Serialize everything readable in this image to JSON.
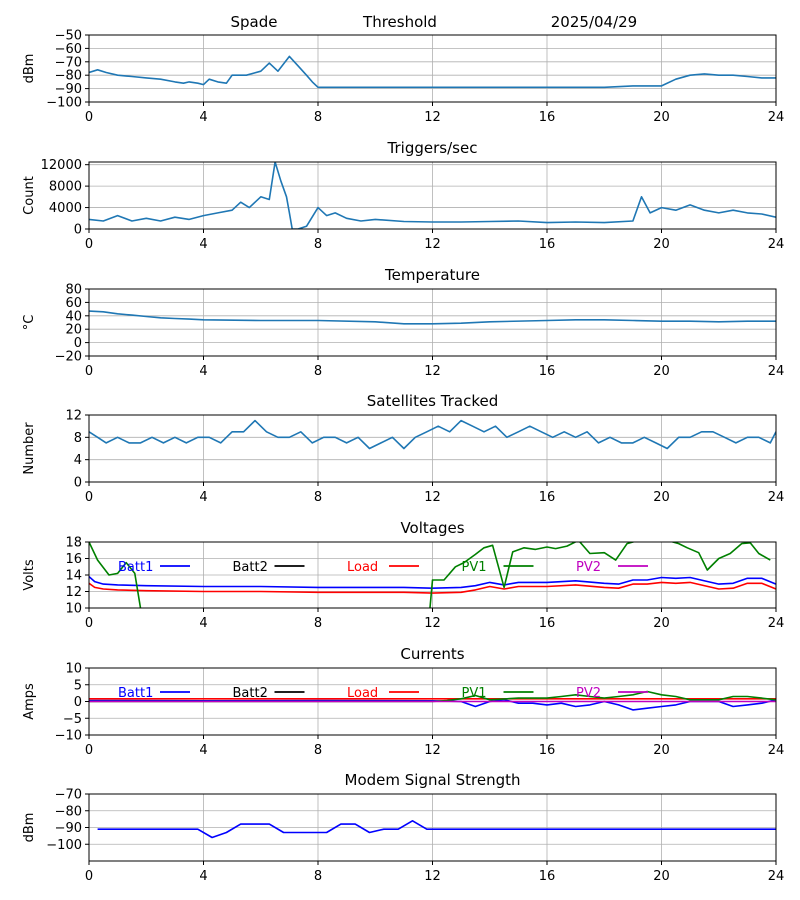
{
  "header": {
    "station": "Spade",
    "mode": "Threshold",
    "date": "2025/04/29"
  },
  "chart_data": [
    {
      "id": "signal",
      "type": "line",
      "title": "",
      "xlabel": "",
      "ylabel": "dBm",
      "xlim": [
        0,
        24
      ],
      "ylim": [
        -100,
        -50
      ],
      "xticks": [
        0,
        4,
        8,
        12,
        16,
        20,
        24
      ],
      "yticks": [
        -100,
        -90,
        -80,
        -70,
        -60,
        -50
      ],
      "yticklabels": [
        "−100",
        "−90",
        "−80",
        "−70",
        "−60",
        "−50"
      ],
      "grid": true,
      "series": [
        {
          "color": "#1f77b4",
          "x": [
            0,
            0.3,
            0.6,
            1,
            1.5,
            2,
            2.5,
            3,
            3.3,
            3.5,
            3.8,
            4,
            4.2,
            4.5,
            4.8,
            5,
            5.5,
            6,
            6.3,
            6.6,
            7,
            7.3,
            7.6,
            7.8,
            8,
            10,
            12,
            14,
            16,
            17,
            18,
            19,
            20,
            20.5,
            21,
            21.5,
            22,
            22.5,
            23,
            23.5,
            24
          ],
          "y": [
            -78,
            -76,
            -78,
            -80,
            -81,
            -82,
            -83,
            -85,
            -86,
            -85,
            -86,
            -87,
            -83,
            -85,
            -86,
            -80,
            -80,
            -77,
            -71,
            -77,
            -66,
            -73,
            -80,
            -85,
            -89,
            -89,
            -89,
            -89,
            -89,
            -89,
            -89,
            -88,
            -88,
            -83,
            -80,
            -79,
            -80,
            -80,
            -81,
            -82,
            -82
          ]
        }
      ]
    },
    {
      "id": "triggers",
      "type": "line",
      "title": "Triggers/sec",
      "xlabel": "",
      "ylabel": "Count",
      "xlim": [
        0,
        24
      ],
      "ylim": [
        0,
        12500
      ],
      "xticks": [
        0,
        4,
        8,
        12,
        16,
        20,
        24
      ],
      "yticks": [
        0,
        4000,
        8000,
        12000
      ],
      "yticklabels": [
        "0",
        "4000",
        "8000",
        "12000"
      ],
      "grid": true,
      "series": [
        {
          "color": "#1f77b4",
          "x": [
            0,
            0.5,
            1,
            1.5,
            2,
            2.5,
            3,
            3.5,
            4,
            4.5,
            5,
            5.3,
            5.6,
            6,
            6.3,
            6.5,
            6.7,
            6.9,
            7,
            7.1,
            7.3,
            7.6,
            8,
            8.3,
            8.6,
            9,
            9.5,
            10,
            11,
            12,
            13,
            14,
            15,
            16,
            17,
            18,
            19,
            19.3,
            19.6,
            20,
            20.5,
            21,
            21.5,
            22,
            22.5,
            23,
            23.5,
            24
          ],
          "y": [
            1800,
            1500,
            2500,
            1500,
            2000,
            1500,
            2200,
            1800,
            2500,
            3000,
            3500,
            5000,
            4000,
            6000,
            5500,
            12500,
            9000,
            6000,
            3000,
            0,
            0,
            500,
            4000,
            2500,
            3000,
            2000,
            1500,
            1800,
            1400,
            1300,
            1300,
            1400,
            1500,
            1200,
            1300,
            1200,
            1500,
            6000,
            3000,
            4000,
            3500,
            4500,
            3500,
            3000,
            3500,
            3000,
            2800,
            2200
          ]
        }
      ]
    },
    {
      "id": "temperature",
      "type": "line",
      "title": "Temperature",
      "xlabel": "",
      "ylabel": "°C",
      "xlim": [
        0,
        24
      ],
      "ylim": [
        -20,
        80
      ],
      "xticks": [
        0,
        4,
        8,
        12,
        16,
        20,
        24
      ],
      "yticks": [
        -20,
        0,
        20,
        40,
        60,
        80
      ],
      "yticklabels": [
        "−20",
        "0",
        "20",
        "40",
        "60",
        "80"
      ],
      "grid": true,
      "series": [
        {
          "color": "#1f77b4",
          "x": [
            0,
            0.5,
            1,
            1.5,
            2,
            2.5,
            3,
            3.5,
            4,
            6,
            8,
            10,
            11,
            12,
            13,
            14,
            16,
            17,
            18,
            19,
            20,
            21,
            22,
            23,
            24
          ],
          "y": [
            47,
            46,
            43,
            41,
            39,
            37,
            36,
            35,
            34,
            33,
            33,
            31,
            28,
            28,
            29,
            31,
            33,
            34,
            34,
            33,
            32,
            32,
            31,
            32,
            32
          ]
        }
      ]
    },
    {
      "id": "satellites",
      "type": "line",
      "title": "Satellites Tracked",
      "xlabel": "",
      "ylabel": "Number",
      "xlim": [
        0,
        24
      ],
      "ylim": [
        0,
        12
      ],
      "xticks": [
        0,
        4,
        8,
        12,
        16,
        20,
        24
      ],
      "yticks": [
        0,
        4,
        8,
        12
      ],
      "yticklabels": [
        "0",
        "4",
        "8",
        "12"
      ],
      "grid": true,
      "series": [
        {
          "color": "#1f77b4",
          "x": [
            0,
            0.3,
            0.6,
            1,
            1.4,
            1.8,
            2.2,
            2.6,
            3,
            3.4,
            3.8,
            4.2,
            4.6,
            5,
            5.4,
            5.8,
            6.2,
            6.6,
            7,
            7.4,
            7.8,
            8.2,
            8.6,
            9,
            9.4,
            9.8,
            10.2,
            10.6,
            11,
            11.4,
            11.8,
            12.2,
            12.6,
            13,
            13.4,
            13.8,
            14.2,
            14.6,
            15,
            15.4,
            15.8,
            16.2,
            16.6,
            17,
            17.4,
            17.8,
            18.2,
            18.6,
            19,
            19.4,
            19.8,
            20.2,
            20.6,
            21,
            21.4,
            21.8,
            22.2,
            22.6,
            23,
            23.4,
            23.8,
            24
          ],
          "y": [
            9,
            8,
            7,
            8,
            7,
            7,
            8,
            7,
            8,
            7,
            8,
            8,
            7,
            9,
            9,
            11,
            9,
            8,
            8,
            9,
            7,
            8,
            8,
            7,
            8,
            6,
            7,
            8,
            6,
            8,
            9,
            10,
            9,
            11,
            10,
            9,
            10,
            8,
            9,
            10,
            9,
            8,
            9,
            8,
            9,
            7,
            8,
            7,
            7,
            8,
            7,
            6,
            8,
            8,
            9,
            9,
            8,
            7,
            8,
            8,
            7,
            9
          ]
        }
      ]
    },
    {
      "id": "voltages",
      "type": "line",
      "title": "Voltages",
      "xlabel": "",
      "ylabel": "Volts",
      "xlim": [
        0,
        24
      ],
      "ylim": [
        10,
        18
      ],
      "xticks": [
        0,
        4,
        8,
        12,
        16,
        20,
        24
      ],
      "yticks": [
        10,
        12,
        14,
        16,
        18
      ],
      "yticklabels": [
        "10",
        "12",
        "14",
        "16",
        "18"
      ],
      "grid": true,
      "legend": "top-left",
      "series": [
        {
          "name": "Batt1",
          "color": "#0000ff",
          "x": [
            0,
            0.2,
            0.5,
            1,
            2,
            4,
            6,
            8,
            10,
            11,
            12,
            13,
            13.5,
            14,
            14.5,
            15,
            16,
            17,
            18,
            18.5,
            19,
            19.5,
            20,
            20.5,
            21,
            22,
            22.5,
            23,
            23.5,
            24
          ],
          "y": [
            13.8,
            13.2,
            12.9,
            12.8,
            12.7,
            12.6,
            12.6,
            12.5,
            12.5,
            12.5,
            12.4,
            12.5,
            12.7,
            13.1,
            12.8,
            13.1,
            13.1,
            13.3,
            13.0,
            12.9,
            13.4,
            13.4,
            13.7,
            13.6,
            13.7,
            12.9,
            13.0,
            13.6,
            13.6,
            12.9
          ]
        },
        {
          "name": "Batt2",
          "color": "#000000",
          "x": [],
          "y": []
        },
        {
          "name": "Load",
          "color": "#ff0000",
          "x": [
            0,
            0.2,
            0.5,
            1,
            2,
            4,
            6,
            8,
            10,
            11,
            12,
            13,
            13.5,
            14,
            14.5,
            15,
            16,
            17,
            18,
            18.5,
            19,
            19.5,
            20,
            20.5,
            21,
            22,
            22.5,
            23,
            23.5,
            24
          ],
          "y": [
            13.0,
            12.5,
            12.3,
            12.2,
            12.1,
            12.0,
            12.0,
            11.9,
            11.9,
            11.9,
            11.8,
            11.9,
            12.2,
            12.6,
            12.3,
            12.6,
            12.6,
            12.8,
            12.5,
            12.4,
            12.9,
            12.9,
            13.1,
            13.0,
            13.1,
            12.3,
            12.4,
            13.0,
            13.0,
            12.3
          ]
        },
        {
          "name": "PV1",
          "color": "#008000",
          "x": [
            0,
            0.3,
            0.7,
            1,
            1.3,
            1.6,
            1.8,
            2.0,
            11.9,
            12,
            12.4,
            12.8,
            13.1,
            13.5,
            13.8,
            14.1,
            14.5,
            14.8,
            15.2,
            15.6,
            16.0,
            16.3,
            16.7,
            17.1,
            17.5,
            18.0,
            18.4,
            18.8,
            19.2,
            19.6,
            20,
            20.3,
            20.6,
            20.9,
            21.3,
            21.6,
            22,
            22.4,
            22.8,
            23.1,
            23.4,
            23.8
          ],
          "y": [
            18,
            15.8,
            14,
            14.2,
            15.5,
            14.2,
            10,
            9.5,
            9.5,
            13.4,
            13.4,
            15,
            15.5,
            16.5,
            17.3,
            17.6,
            12.5,
            16.8,
            17.3,
            17.1,
            17.4,
            17.2,
            17.5,
            18.2,
            16.6,
            16.7,
            15.8,
            17.8,
            18.2,
            18.1,
            18.4,
            18.1,
            17.8,
            17.3,
            16.7,
            14.6,
            16.0,
            16.6,
            17.8,
            17.9,
            16.6,
            15.8
          ]
        },
        {
          "name": "PV2",
          "color": "#bf00bf",
          "x": [],
          "y": []
        }
      ]
    },
    {
      "id": "currents",
      "type": "line",
      "title": "Currents",
      "xlabel": "",
      "ylabel": "Amps",
      "xlim": [
        0,
        24
      ],
      "ylim": [
        -10,
        10
      ],
      "xticks": [
        0,
        4,
        8,
        12,
        16,
        20,
        24
      ],
      "yticks": [
        -10,
        -5,
        0,
        5,
        10
      ],
      "yticklabels": [
        "−10",
        "−5",
        "0",
        "5",
        "10"
      ],
      "grid": true,
      "legend": "top-left",
      "series": [
        {
          "name": "Batt1",
          "color": "#0000ff",
          "x": [
            0,
            4,
            8,
            12,
            13,
            13.5,
            14,
            14.5,
            15,
            15.5,
            16,
            16.5,
            17,
            17.5,
            18,
            18.5,
            19,
            19.5,
            20,
            20.5,
            21,
            22,
            22.5,
            23,
            23.5,
            24
          ],
          "y": [
            0.3,
            0.2,
            0.3,
            0.2,
            0,
            -1.5,
            0,
            0.5,
            -0.5,
            -0.5,
            -1.0,
            -0.5,
            -1.5,
            -1.0,
            0,
            -1.0,
            -2.5,
            -2.0,
            -1.5,
            -1.0,
            0,
            0,
            -1.5,
            -1.0,
            -0.5,
            0.5
          ]
        },
        {
          "name": "Batt2",
          "color": "#000000",
          "x": [],
          "y": []
        },
        {
          "name": "Load",
          "color": "#ff0000",
          "x": [
            0,
            4,
            8,
            12,
            16,
            20,
            24
          ],
          "y": [
            0.8,
            0.8,
            0.8,
            0.8,
            0.8,
            0.8,
            0.8
          ]
        },
        {
          "name": "PV1",
          "color": "#008000",
          "x": [
            0,
            12,
            12.5,
            13,
            13.5,
            14,
            15,
            16,
            16.5,
            17,
            17.5,
            18,
            18.5,
            19,
            19.5,
            20,
            20.5,
            21,
            22,
            22.5,
            23,
            23.5,
            24
          ],
          "y": [
            0,
            0,
            0.3,
            0.8,
            1.8,
            0.5,
            1.0,
            1.0,
            1.5,
            2.0,
            1.5,
            1.0,
            1.5,
            2.0,
            3.0,
            2.0,
            1.5,
            0.5,
            0.5,
            1.5,
            1.5,
            1.0,
            0.5
          ]
        },
        {
          "name": "PV2",
          "color": "#bf00bf",
          "x": [
            0,
            24
          ],
          "y": [
            0,
            0
          ]
        }
      ]
    },
    {
      "id": "modem",
      "type": "line",
      "title": "Modem Signal Strength",
      "xlabel": "",
      "ylabel": "dBm",
      "xlim": [
        0,
        24
      ],
      "ylim": [
        -110,
        -70
      ],
      "xticks": [
        0,
        4,
        8,
        12,
        16,
        20,
        24
      ],
      "yticks": [
        -100,
        -90,
        -80,
        -70
      ],
      "yticklabels": [
        "−100",
        "−90",
        "−80",
        "−70"
      ],
      "grid": true,
      "series": [
        {
          "color": "#0000ff",
          "x": [
            0.3,
            3.8,
            4.3,
            4.8,
            5.3,
            6.3,
            6.8,
            7.3,
            8.3,
            8.8,
            9.3,
            9.8,
            10.3,
            10.8,
            11.3,
            11.8,
            12.3,
            24
          ],
          "y": [
            -91,
            -91,
            -96,
            -93,
            -88,
            -88,
            -93,
            -93,
            -93,
            -88,
            -88,
            -93,
            -91,
            -91,
            -86,
            -91,
            -91,
            -91
          ]
        }
      ]
    }
  ]
}
